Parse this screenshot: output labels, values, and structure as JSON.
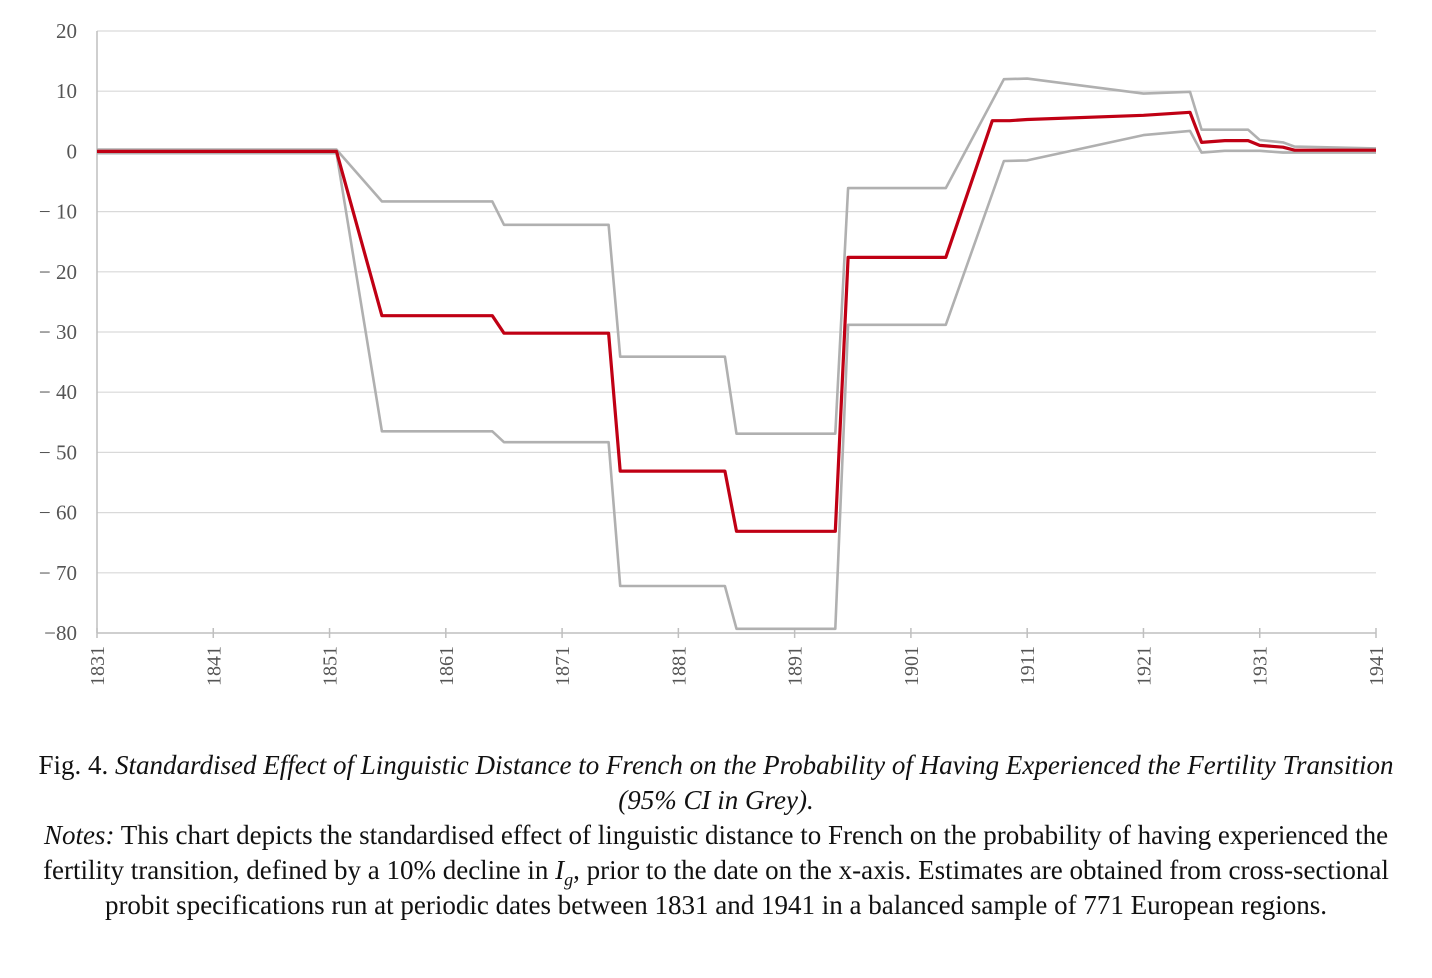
{
  "chart_data": {
    "type": "line",
    "title": "",
    "xlabel": "",
    "ylabel": "",
    "x_ticks": [
      "1831",
      "1841",
      "1851",
      "1861",
      "1871",
      "1881",
      "1891",
      "1901",
      "1911",
      "1921",
      "1931",
      "1941"
    ],
    "y_ticks": [
      "20",
      "10",
      "0",
      "− 10",
      "− 20",
      "− 30",
      "− 40",
      "− 50",
      "− 60",
      "− 70",
      "−80"
    ],
    "xlim": [
      1831,
      1941
    ],
    "ylim": [
      -80,
      20
    ],
    "grid": "horizontal",
    "legend": "none",
    "colors": {
      "estimate": "#c00014",
      "ci": "#b0b0b0",
      "grid": "#d9d9d9",
      "axis": "#bfbfbf"
    },
    "series": [
      {
        "role": "estimate",
        "points": [
          [
            1831,
            0
          ],
          [
            1851.6,
            0
          ],
          [
            1855.5,
            -27.3
          ],
          [
            1865,
            -27.3
          ],
          [
            1866,
            -30.2
          ],
          [
            1875,
            -30.2
          ],
          [
            1876,
            -53.1
          ],
          [
            1885,
            -53.1
          ],
          [
            1886,
            -63.1
          ],
          [
            1894.5,
            -63.1
          ],
          [
            1895.6,
            -17.6
          ],
          [
            1904,
            -17.6
          ],
          [
            1908,
            5.1
          ],
          [
            1909.5,
            5.1
          ],
          [
            1911,
            5.3
          ],
          [
            1921,
            6.0
          ],
          [
            1925,
            6.5
          ],
          [
            1926,
            1.5
          ],
          [
            1928,
            1.8
          ],
          [
            1930,
            1.8
          ],
          [
            1931,
            1.0
          ],
          [
            1933,
            0.7
          ],
          [
            1934,
            0.2
          ],
          [
            1941,
            0.2
          ]
        ]
      },
      {
        "role": "ci-upper",
        "points": [
          [
            1831,
            0.3
          ],
          [
            1851.6,
            0.3
          ],
          [
            1855.5,
            -8.3
          ],
          [
            1865,
            -8.3
          ],
          [
            1866,
            -12.2
          ],
          [
            1875,
            -12.2
          ],
          [
            1876,
            -34.1
          ],
          [
            1885,
            -34.1
          ],
          [
            1886,
            -46.9
          ],
          [
            1894.5,
            -46.9
          ],
          [
            1895.6,
            -6.1
          ],
          [
            1904,
            -6.1
          ],
          [
            1909,
            12.0
          ],
          [
            1911,
            12.1
          ],
          [
            1921,
            9.6
          ],
          [
            1925,
            9.9
          ],
          [
            1926,
            3.6
          ],
          [
            1928,
            3.6
          ],
          [
            1930,
            3.6
          ],
          [
            1931,
            1.9
          ],
          [
            1933,
            1.5
          ],
          [
            1934,
            0.8
          ],
          [
            1941,
            0.5
          ]
        ]
      },
      {
        "role": "ci-lower",
        "points": [
          [
            1831,
            -0.3
          ],
          [
            1851.6,
            -0.3
          ],
          [
            1855.5,
            -46.5
          ],
          [
            1865,
            -46.5
          ],
          [
            1866,
            -48.3
          ],
          [
            1875,
            -48.3
          ],
          [
            1876,
            -72.2
          ],
          [
            1885,
            -72.2
          ],
          [
            1886,
            -79.3
          ],
          [
            1894.5,
            -79.3
          ],
          [
            1895.6,
            -28.8
          ],
          [
            1904,
            -28.8
          ],
          [
            1909,
            -1.6
          ],
          [
            1911,
            -1.5
          ],
          [
            1921,
            2.7
          ],
          [
            1925,
            3.4
          ],
          [
            1926,
            -0.2
          ],
          [
            1928,
            0.1
          ],
          [
            1930,
            0.1
          ],
          [
            1931,
            0.1
          ],
          [
            1933,
            -0.2
          ],
          [
            1934,
            -0.2
          ],
          [
            1941,
            -0.2
          ]
        ]
      }
    ]
  },
  "caption": {
    "fig_label": "Fig. 4.",
    "fig_title": "Standardised Effect of Linguistic Distance to French on the Probability of Having Experienced the Fertility Transition (95% CI in Grey).",
    "notes_label": "Notes:",
    "notes_text_1": "This chart depicts the standardised effect of linguistic distance to French on the probability of having experienced the fertility transition, defined by a 10% decline in",
    "notes_var": "I",
    "notes_sub": "g",
    "notes_text_2": ", prior to the date on the x-axis. Estimates are obtained from cross-sectional probit specifications run at periodic dates between 1831 and 1941 in a balanced sample of 771 European regions."
  }
}
